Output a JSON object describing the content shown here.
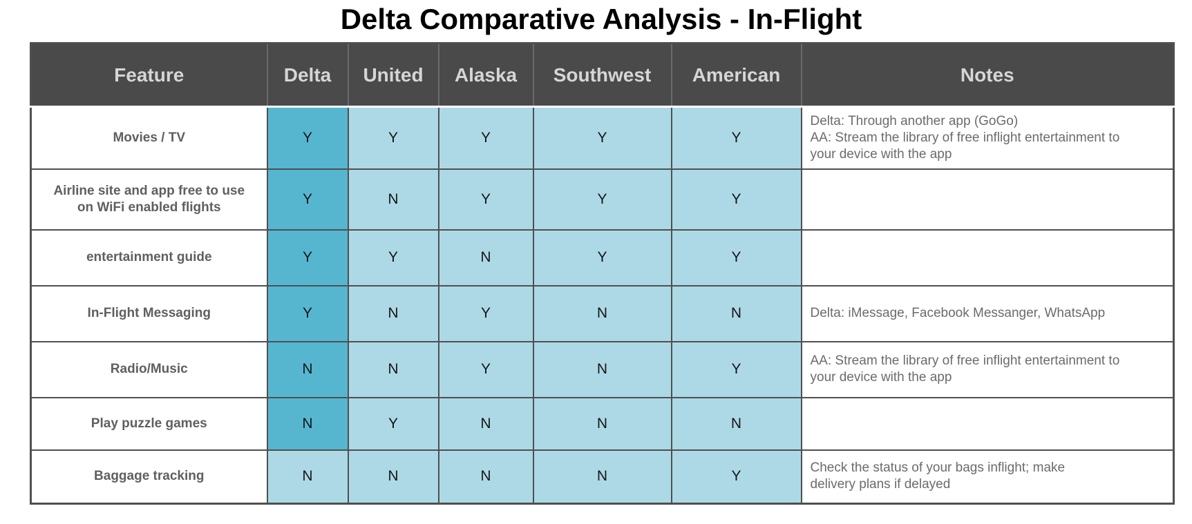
{
  "title": "Delta Comparative Analysis - In-Flight",
  "table": {
    "columns": [
      "Feature",
      "Delta",
      "United",
      "Alaska",
      "Southwest",
      "American",
      "Notes"
    ],
    "rows": [
      {
        "feature": "Movies / TV",
        "values": [
          "Y",
          "Y",
          "Y",
          "Y",
          "Y"
        ],
        "notes": "Delta: Through another app (GoGo)\nAA: Stream the library of free inflight entertainment to\nyour device with the app"
      },
      {
        "feature": "Airline site and app free to use on WiFi enabled flights",
        "values": [
          "Y",
          "N",
          "Y",
          "Y",
          "Y"
        ],
        "notes": ""
      },
      {
        "feature": "entertainment guide",
        "values": [
          "Y",
          "Y",
          "N",
          "Y",
          "Y"
        ],
        "notes": ""
      },
      {
        "feature": "In-Flight Messaging",
        "values": [
          "Y",
          "N",
          "Y",
          "N",
          "N"
        ],
        "notes": "Delta: iMessage, Facebook Messanger, WhatsApp"
      },
      {
        "feature": "Radio/Music",
        "values": [
          "N",
          "N",
          "Y",
          "N",
          "Y"
        ],
        "notes": "AA: Stream the library of free inflight entertainment to\nyour device with the app"
      },
      {
        "feature": "Play puzzle games",
        "values": [
          "N",
          "Y",
          "N",
          "N",
          "N"
        ],
        "notes": ""
      },
      {
        "feature": "Baggage tracking",
        "values": [
          "N",
          "N",
          "N",
          "N",
          "Y"
        ],
        "notes": "Check the status of your bags inflight; make\ndelivery plans if delayed"
      }
    ],
    "delta_highlighted_rows": [
      0,
      1,
      2,
      3,
      4,
      5
    ]
  },
  "colors": {
    "header_bg": "#4a4a4a",
    "header_text": "#d6d6d6",
    "header_separator": "#6a6a6a",
    "delta_highlight_cell": "#56b6cf",
    "standard_cell": "#add9e6",
    "grid_border": "#4f4f4f",
    "feature_text": "#5f5f5f",
    "notes_text": "#6b6b6b"
  }
}
